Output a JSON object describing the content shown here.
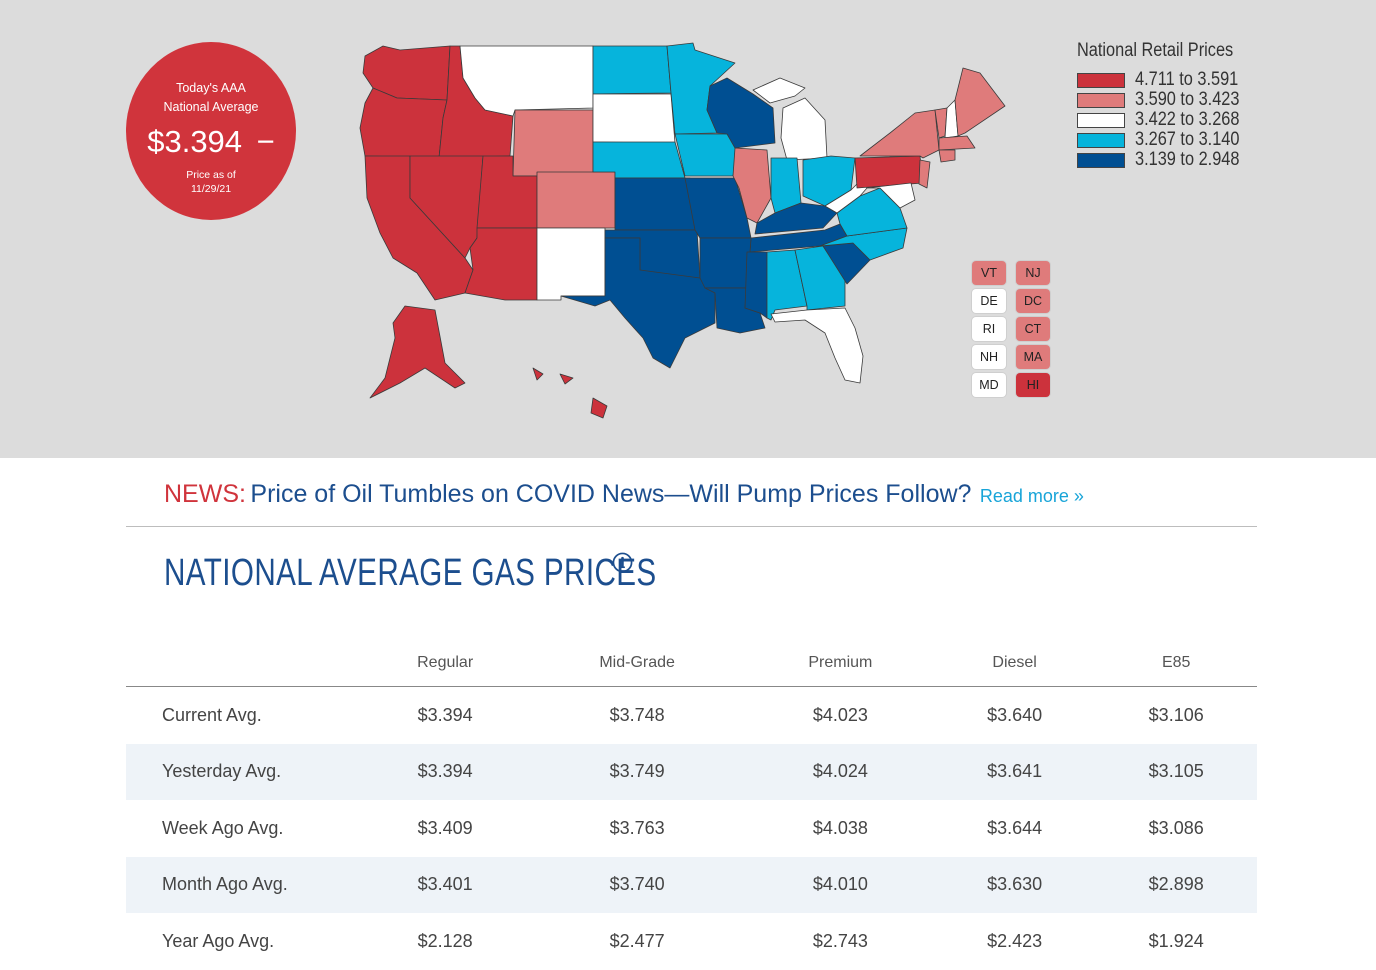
{
  "badge": {
    "line1": "Today's AAA",
    "line2": "National Average",
    "price": "$3.394",
    "trend": "−",
    "asof_line1": "Price as of",
    "asof_line2": "11/29/21"
  },
  "map": {
    "colors": {
      "tier1": "#cc323c",
      "tier2": "#df7b7b",
      "tier3": "#ffffff",
      "tier4": "#06b4dc",
      "tier5": "#004f92"
    }
  },
  "legend": {
    "title": "National Retail Prices",
    "items": [
      {
        "label": "4.711 to 3.591",
        "color": "#cc323c"
      },
      {
        "label": "3.590 to 3.423",
        "color": "#df7b7b"
      },
      {
        "label": "3.422 to 3.268",
        "color": "#ffffff"
      },
      {
        "label": "3.267 to 3.140",
        "color": "#06b4dc"
      },
      {
        "label": "3.139 to 2.948",
        "color": "#004f92"
      }
    ]
  },
  "small_states": [
    {
      "code": "VT",
      "color": "#df7b7b"
    },
    {
      "code": "NJ",
      "color": "#df7b7b"
    },
    {
      "code": "DE",
      "color": "#ffffff"
    },
    {
      "code": "DC",
      "color": "#df7b7b"
    },
    {
      "code": "RI",
      "color": "#ffffff"
    },
    {
      "code": "CT",
      "color": "#df7b7b"
    },
    {
      "code": "NH",
      "color": "#ffffff"
    },
    {
      "code": "MA",
      "color": "#df7b7b"
    },
    {
      "code": "MD",
      "color": "#ffffff"
    },
    {
      "code": "HI",
      "color": "#cc323c"
    }
  ],
  "news": {
    "tag": "NEWS:",
    "headline": "Price of Oil Tumbles on COVID News—Will Pump Prices Follow?",
    "more": "Read more »"
  },
  "section": {
    "title": "NATIONAL AVERAGE GAS PRICES",
    "info_icon": "info-circle-icon"
  },
  "table": {
    "headers": [
      "",
      "Regular",
      "Mid-Grade",
      "Premium",
      "Diesel",
      "E85"
    ],
    "rows": [
      {
        "label": "Current Avg.",
        "values": [
          "$3.394",
          "$3.748",
          "$4.023",
          "$3.640",
          "$3.106"
        ]
      },
      {
        "label": "Yesterday Avg.",
        "values": [
          "$3.394",
          "$3.749",
          "$4.024",
          "$3.641",
          "$3.105"
        ]
      },
      {
        "label": "Week Ago Avg.",
        "values": [
          "$3.409",
          "$3.763",
          "$4.038",
          "$3.644",
          "$3.086"
        ]
      },
      {
        "label": "Month Ago Avg.",
        "values": [
          "$3.401",
          "$3.740",
          "$4.010",
          "$3.630",
          "$2.898"
        ]
      },
      {
        "label": "Year Ago Avg.",
        "values": [
          "$2.128",
          "$2.477",
          "$2.743",
          "$2.423",
          "$1.924"
        ]
      }
    ]
  }
}
